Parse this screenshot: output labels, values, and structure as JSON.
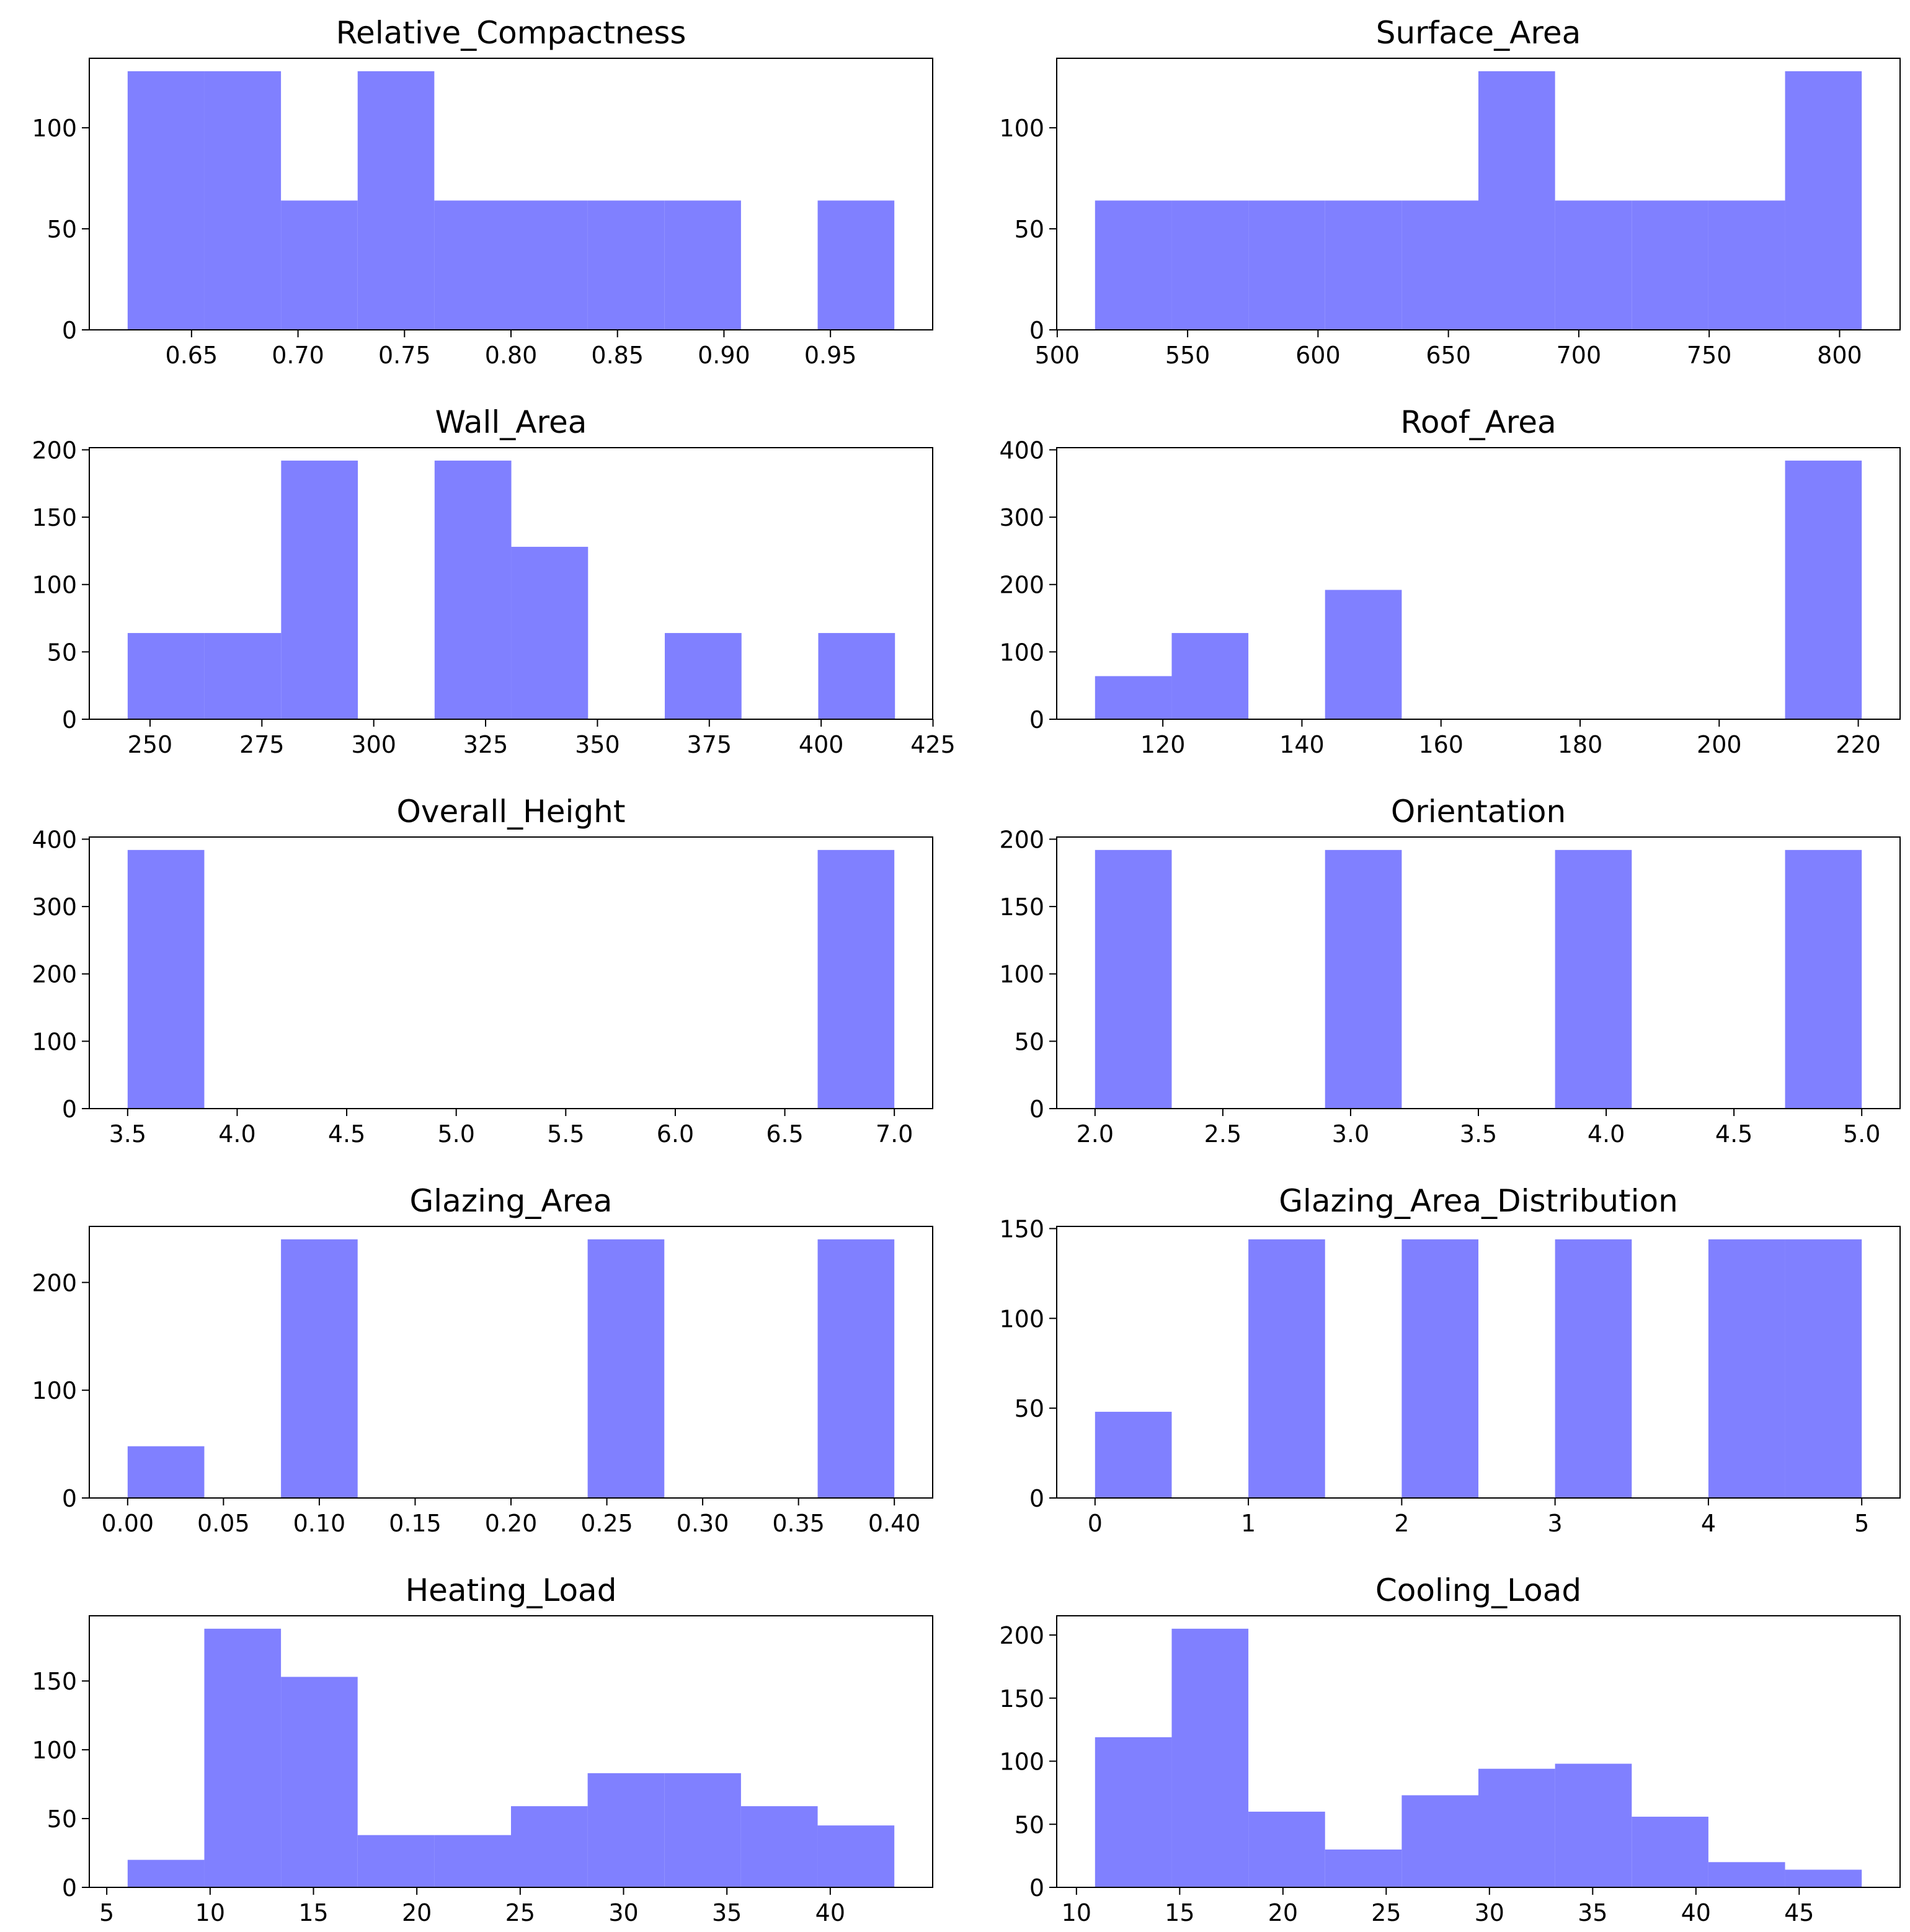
{
  "chart_data": [
    {
      "type": "histogram",
      "title": "Relative_Compactness",
      "color": "#8080ff",
      "bins": [
        0.62,
        0.656,
        0.692,
        0.728,
        0.764,
        0.8,
        0.836,
        0.872,
        0.908,
        0.944,
        0.98
      ],
      "values": [
        128,
        128,
        64,
        128,
        64,
        64,
        64,
        64,
        0,
        64
      ],
      "xlim": [
        0.602,
        0.998
      ],
      "ylim": [
        0,
        134.4
      ],
      "xticks": [
        0.65,
        {
          "value": 0.7,
          "label": "0.70"
        },
        0.75,
        {
          "value": 0.8,
          "label": "0.80"
        },
        0.85,
        {
          "value": 0.9,
          "label": "0.90"
        },
        0.95
      ],
      "yticks": [
        0,
        50,
        100
      ]
    },
    {
      "type": "histogram",
      "title": "Surface_Area",
      "color": "#8080ff",
      "bins": [
        514.5,
        543.9,
        573.3,
        602.7,
        632.1,
        661.5,
        690.9,
        720.3,
        749.7,
        779.1,
        808.5
      ],
      "values": [
        64,
        64,
        64,
        64,
        64,
        128,
        64,
        64,
        64,
        128
      ],
      "xlim": [
        499.8,
        823.2
      ],
      "ylim": [
        0,
        134.4
      ],
      "xticks": [
        500,
        550,
        600,
        650,
        700,
        750,
        800
      ],
      "yticks": [
        0,
        50,
        100
      ]
    },
    {
      "type": "histogram",
      "title": "Wall_Area",
      "color": "#8080ff",
      "bins": [
        245,
        262.15,
        279.3,
        296.45,
        313.6,
        330.75,
        347.9,
        365.05,
        382.2,
        399.35,
        416.5
      ],
      "values": [
        64,
        64,
        192,
        0,
        192,
        128,
        0,
        64,
        0,
        64
      ],
      "xlim": [
        236.425,
        424.925
      ],
      "ylim": [
        0,
        201.6
      ],
      "xticks": [
        250,
        275,
        300,
        325,
        350,
        375,
        400,
        425
      ],
      "yticks": [
        0,
        50,
        100,
        150,
        200
      ]
    },
    {
      "type": "histogram",
      "title": "Roof_Area",
      "color": "#8080ff",
      "bins": [
        110.25,
        121.275,
        132.3,
        143.325,
        154.35,
        165.375,
        176.4,
        187.425,
        198.45,
        209.475,
        220.5
      ],
      "values": [
        64,
        128,
        0,
        192,
        0,
        0,
        0,
        0,
        0,
        384
      ],
      "xlim": [
        104.7375,
        226.0125
      ],
      "ylim": [
        0,
        403.2
      ],
      "xticks": [
        120,
        140,
        160,
        180,
        200,
        220
      ],
      "yticks": [
        0,
        100,
        200,
        300,
        400
      ]
    },
    {
      "type": "histogram",
      "title": "Overall_Height",
      "color": "#8080ff",
      "bins": [
        3.5,
        3.85,
        4.2,
        4.55,
        4.9,
        5.25,
        5.6,
        5.95,
        6.3,
        6.65,
        7.0
      ],
      "values": [
        384,
        0,
        0,
        0,
        0,
        0,
        0,
        0,
        0,
        384
      ],
      "xlim": [
        3.325,
        7.175
      ],
      "ylim": [
        0,
        403.2
      ],
      "xticks": [
        3.5,
        {
          "value": 4,
          "label": "4.0"
        },
        4.5,
        {
          "value": 5,
          "label": "5.0"
        },
        5.5,
        {
          "value": 6,
          "label": "6.0"
        },
        6.5,
        {
          "value": 7,
          "label": "7.0"
        }
      ],
      "yticks": [
        0,
        100,
        200,
        300,
        400
      ]
    },
    {
      "type": "histogram",
      "title": "Orientation",
      "color": "#8080ff",
      "bins": [
        2.0,
        2.3,
        2.6,
        2.9,
        3.2,
        3.5,
        3.8,
        4.1,
        4.4,
        4.7,
        5.0
      ],
      "values": [
        192,
        0,
        0,
        192,
        0,
        0,
        192,
        0,
        0,
        192
      ],
      "xlim": [
        1.85,
        5.15
      ],
      "ylim": [
        0,
        201.6
      ],
      "xticks": [
        {
          "value": 2,
          "label": "2.0"
        },
        2.5,
        {
          "value": 3,
          "label": "3.0"
        },
        3.5,
        {
          "value": 4,
          "label": "4.0"
        },
        4.5,
        {
          "value": 5,
          "label": "5.0"
        }
      ],
      "yticks": [
        0,
        50,
        100,
        150,
        200
      ]
    },
    {
      "type": "histogram",
      "title": "Glazing_Area",
      "color": "#8080ff",
      "bins": [
        0,
        0.04,
        0.08,
        0.12,
        0.16,
        0.2,
        0.24,
        0.28,
        0.32,
        0.36,
        0.4
      ],
      "values": [
        48,
        0,
        240,
        0,
        0,
        0,
        240,
        0,
        0,
        240
      ],
      "xlim": [
        -0.02,
        0.42
      ],
      "ylim": [
        0,
        252
      ],
      "xticks": [
        {
          "value": 0,
          "label": "0.00"
        },
        0.05,
        {
          "value": 0.1,
          "label": "0.10"
        },
        0.15,
        {
          "value": 0.2,
          "label": "0.20"
        },
        0.25,
        {
          "value": 0.3,
          "label": "0.30"
        },
        0.35,
        {
          "value": 0.4,
          "label": "0.40"
        }
      ],
      "yticks": [
        0,
        100,
        200
      ]
    },
    {
      "type": "histogram",
      "title": "Glazing_Area_Distribution",
      "color": "#8080ff",
      "bins": [
        0,
        0.5,
        1,
        1.5,
        2,
        2.5,
        3,
        3.5,
        4,
        4.5,
        5
      ],
      "values": [
        48,
        0,
        144,
        0,
        144,
        0,
        144,
        0,
        144,
        144
      ],
      "xlim": [
        -0.25,
        5.25
      ],
      "ylim": [
        0,
        151.2
      ],
      "xticks": [
        0,
        1,
        2,
        3,
        4,
        5
      ],
      "yticks": [
        0,
        50,
        100,
        150
      ]
    },
    {
      "type": "histogram",
      "title": "Heating_Load",
      "color": "#8080ff",
      "bins": [
        6.01,
        9.719,
        13.428,
        17.137,
        20.846,
        24.555,
        28.264,
        31.973,
        35.682,
        39.391,
        43.1
      ],
      "values": [
        20,
        188,
        153,
        38,
        38,
        59,
        83,
        83,
        59,
        45
      ],
      "xlim": [
        4.1555,
        44.9545
      ],
      "ylim": [
        0,
        197.4
      ],
      "xticks": [
        5,
        10,
        15,
        20,
        25,
        30,
        35,
        40
      ],
      "yticks": [
        0,
        50,
        100,
        150
      ]
    },
    {
      "type": "histogram",
      "title": "Cooling_Load",
      "color": "#8080ff",
      "bins": [
        10.9,
        14.613,
        18.326,
        22.039,
        25.752,
        29.465,
        33.178,
        36.891,
        40.604,
        44.317,
        48.03
      ],
      "values": [
        119,
        205,
        60,
        30,
        73,
        94,
        98,
        56,
        20,
        14
      ],
      "xlim": [
        9.0435,
        49.8865
      ],
      "ylim": [
        0,
        215.25
      ],
      "xticks": [
        10,
        15,
        20,
        25,
        30,
        35,
        40,
        45
      ],
      "yticks": [
        0,
        50,
        100,
        150,
        200
      ]
    }
  ]
}
